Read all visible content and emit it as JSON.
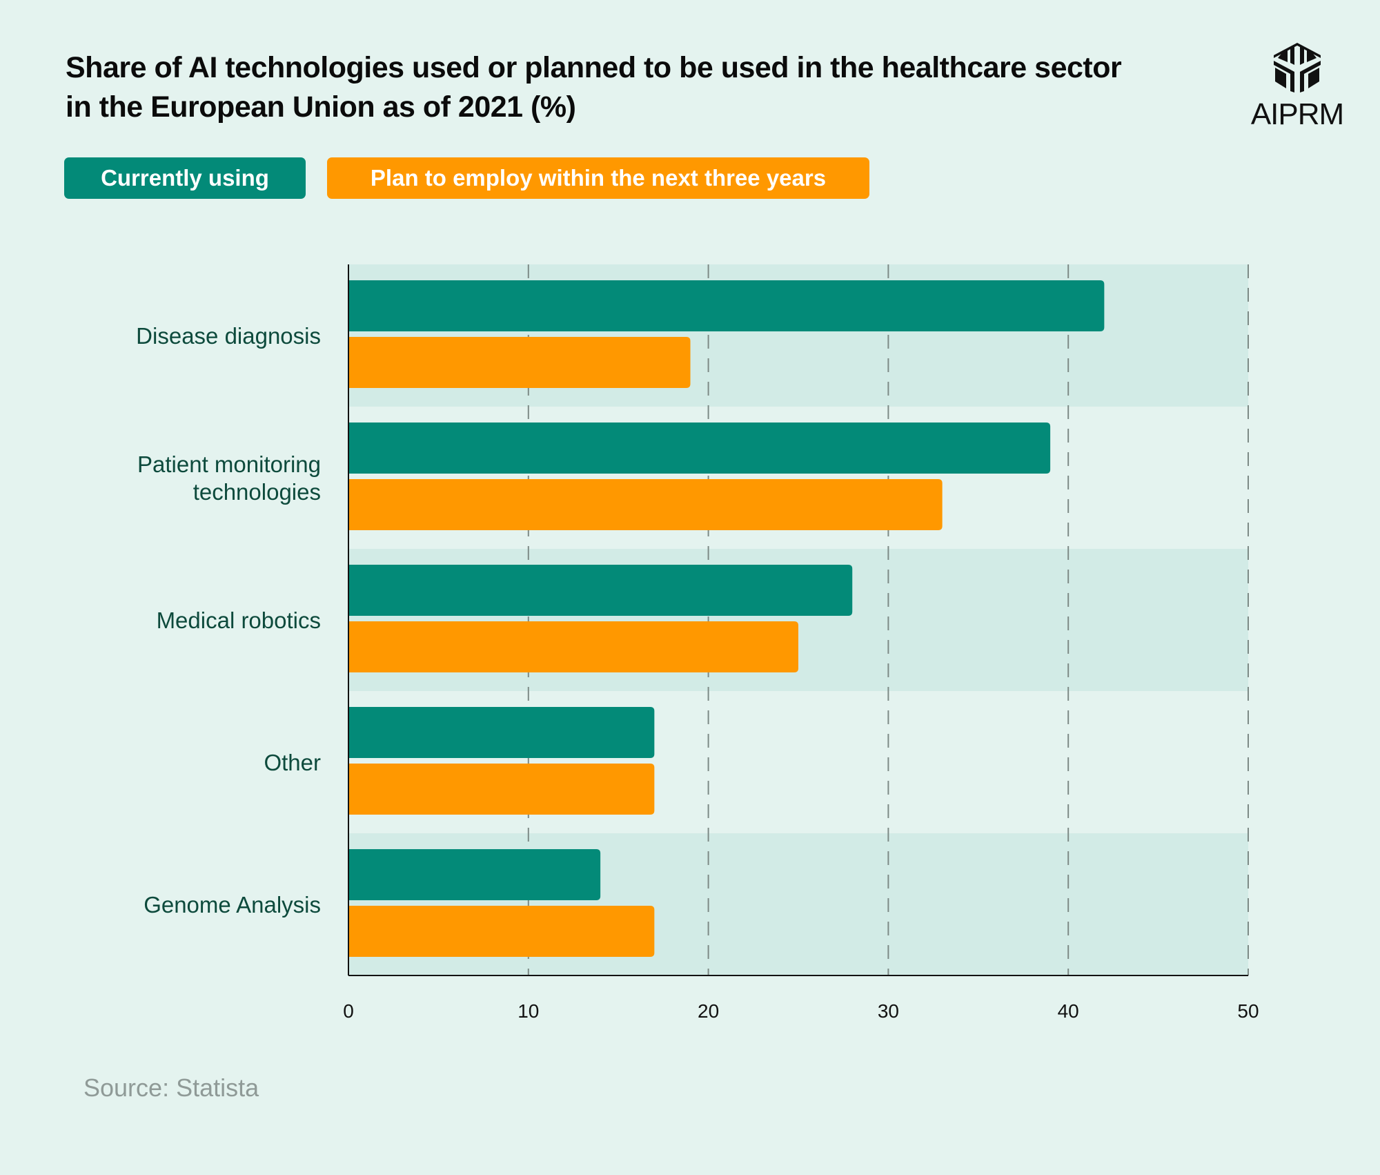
{
  "title": "Share of AI technologies used or planned to be used in the healthcare sector in the European Union as of 2021 (%)",
  "logo": {
    "text": "AIPRM",
    "icon": "aiprm-cube-logo-icon"
  },
  "source": "Source: Statista",
  "colors": {
    "current": "#038a78",
    "plan": "#ff9800",
    "background": "#e4f3ef",
    "band": "#d2ebe6",
    "label": "#0d4a3c"
  },
  "chart_data": {
    "type": "bar",
    "orientation": "horizontal",
    "title": "Share of AI technologies used or planned to be used in the healthcare sector in the European Union as of 2021 (%)",
    "categories": [
      "Disease diagnosis",
      "Patient monitoring technologies",
      "Medical robotics",
      "Other",
      "Genome Analysis"
    ],
    "series": [
      {
        "name": "Currently using",
        "values": [
          42,
          39,
          28,
          17,
          14
        ]
      },
      {
        "name": "Plan to employ within the next three years",
        "values": [
          19,
          33,
          25,
          17,
          17
        ]
      }
    ],
    "xlim": [
      0,
      50
    ],
    "xticks": [
      "0",
      "10",
      "20",
      "30",
      "40",
      "50"
    ],
    "grid": "vertical dashed",
    "legend": "top-left"
  }
}
